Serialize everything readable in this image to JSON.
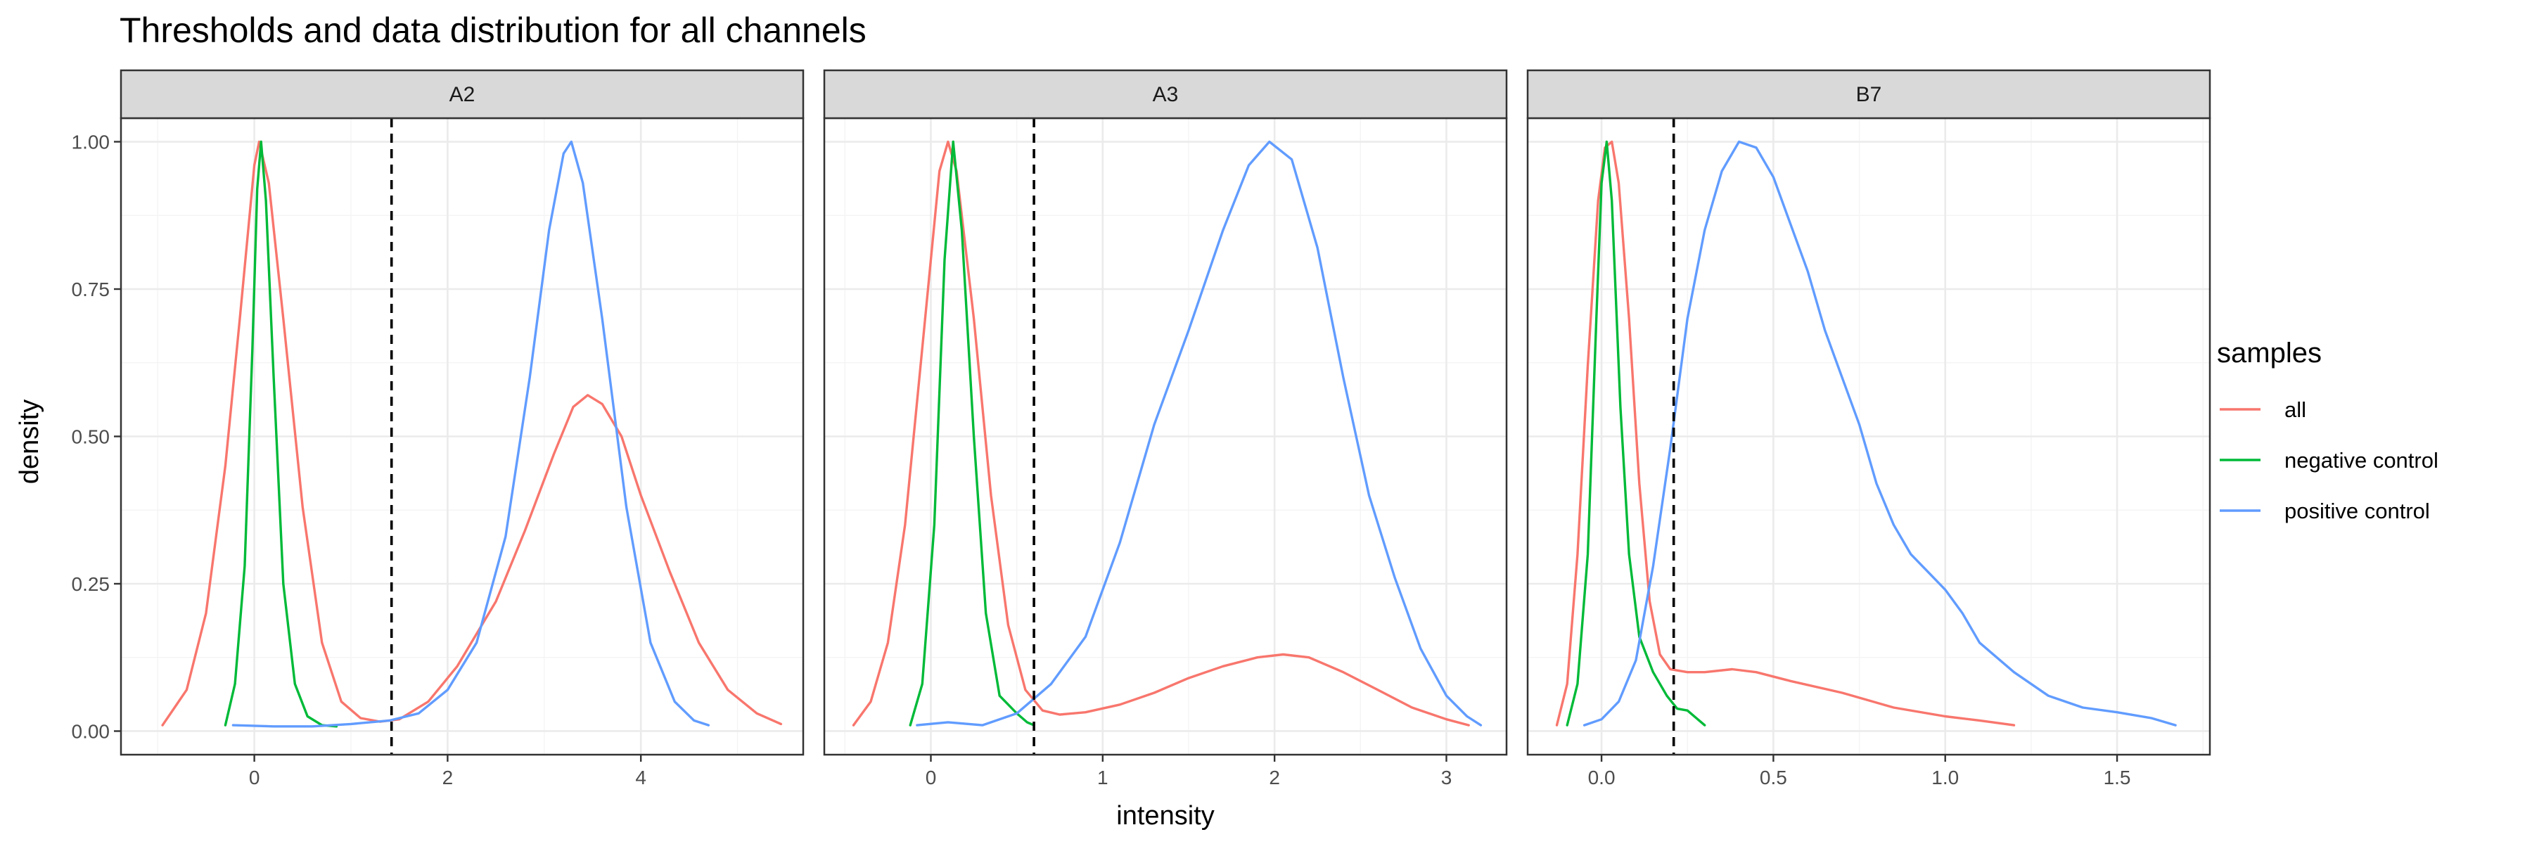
{
  "chart_data": {
    "type": "line",
    "title": "Thresholds and data distribution for all channels",
    "xlabel": "intensity",
    "ylabel": "density",
    "ylim": [
      -0.04,
      1.04
    ],
    "yticks": [
      0.0,
      0.25,
      0.5,
      0.75,
      1.0
    ],
    "ytick_labels": [
      "0.00",
      "0.25",
      "0.50",
      "0.75",
      "1.00"
    ],
    "grid": true,
    "legend": {
      "title": "samples",
      "position": "right",
      "entries": [
        {
          "label": "all",
          "color": "#F8766D"
        },
        {
          "label": "negative control",
          "color": "#00BA38"
        },
        {
          "label": "positive control",
          "color": "#619CFF"
        }
      ]
    },
    "panels": [
      {
        "name": "A2",
        "xlim": [
          -1.38,
          5.68
        ],
        "xticks": [
          0,
          2,
          4
        ],
        "xtick_labels": [
          "0",
          "2",
          "4"
        ],
        "threshold": 1.42,
        "series": [
          {
            "name": "all",
            "points": [
              [
                -0.95,
                0.01
              ],
              [
                -0.7,
                0.07
              ],
              [
                -0.5,
                0.2
              ],
              [
                -0.3,
                0.45
              ],
              [
                -0.15,
                0.7
              ],
              [
                0.0,
                0.96
              ],
              [
                0.05,
                1.0
              ],
              [
                0.15,
                0.93
              ],
              [
                0.3,
                0.7
              ],
              [
                0.5,
                0.38
              ],
              [
                0.7,
                0.15
              ],
              [
                0.9,
                0.05
              ],
              [
                1.1,
                0.022
              ],
              [
                1.3,
                0.016
              ],
              [
                1.5,
                0.02
              ],
              [
                1.8,
                0.05
              ],
              [
                2.1,
                0.11
              ],
              [
                2.5,
                0.22
              ],
              [
                2.8,
                0.34
              ],
              [
                3.1,
                0.47
              ],
              [
                3.3,
                0.55
              ],
              [
                3.45,
                0.57
              ],
              [
                3.6,
                0.555
              ],
              [
                3.8,
                0.5
              ],
              [
                4.0,
                0.4
              ],
              [
                4.3,
                0.27
              ],
              [
                4.6,
                0.15
              ],
              [
                4.9,
                0.07
              ],
              [
                5.2,
                0.03
              ],
              [
                5.45,
                0.012
              ]
            ]
          },
          {
            "name": "negative control",
            "points": [
              [
                -0.3,
                0.01
              ],
              [
                -0.2,
                0.08
              ],
              [
                -0.1,
                0.28
              ],
              [
                -0.02,
                0.65
              ],
              [
                0.03,
                0.92
              ],
              [
                0.07,
                1.0
              ],
              [
                0.12,
                0.9
              ],
              [
                0.2,
                0.6
              ],
              [
                0.3,
                0.25
              ],
              [
                0.42,
                0.08
              ],
              [
                0.55,
                0.025
              ],
              [
                0.7,
                0.01
              ],
              [
                0.85,
                0.008
              ]
            ]
          },
          {
            "name": "positive control",
            "points": [
              [
                -0.22,
                0.01
              ],
              [
                0.2,
                0.008
              ],
              [
                0.6,
                0.008
              ],
              [
                1.0,
                0.012
              ],
              [
                1.4,
                0.018
              ],
              [
                1.7,
                0.03
              ],
              [
                2.0,
                0.07
              ],
              [
                2.3,
                0.15
              ],
              [
                2.6,
                0.33
              ],
              [
                2.85,
                0.6
              ],
              [
                3.05,
                0.85
              ],
              [
                3.2,
                0.98
              ],
              [
                3.28,
                1.0
              ],
              [
                3.4,
                0.93
              ],
              [
                3.6,
                0.7
              ],
              [
                3.85,
                0.38
              ],
              [
                4.1,
                0.15
              ],
              [
                4.35,
                0.05
              ],
              [
                4.55,
                0.018
              ],
              [
                4.7,
                0.01
              ]
            ]
          }
        ]
      },
      {
        "name": "A3",
        "xlim": [
          -0.62,
          3.35
        ],
        "xticks": [
          0,
          1,
          2,
          3
        ],
        "xtick_labels": [
          "0",
          "1",
          "2",
          "3"
        ],
        "threshold": 0.6,
        "series": [
          {
            "name": "all",
            "points": [
              [
                -0.45,
                0.01
              ],
              [
                -0.35,
                0.05
              ],
              [
                -0.25,
                0.15
              ],
              [
                -0.15,
                0.35
              ],
              [
                -0.05,
                0.65
              ],
              [
                0.05,
                0.95
              ],
              [
                0.1,
                1.0
              ],
              [
                0.15,
                0.95
              ],
              [
                0.25,
                0.7
              ],
              [
                0.35,
                0.4
              ],
              [
                0.45,
                0.18
              ],
              [
                0.55,
                0.07
              ],
              [
                0.65,
                0.035
              ],
              [
                0.75,
                0.028
              ],
              [
                0.9,
                0.032
              ],
              [
                1.1,
                0.045
              ],
              [
                1.3,
                0.065
              ],
              [
                1.5,
                0.09
              ],
              [
                1.7,
                0.11
              ],
              [
                1.9,
                0.125
              ],
              [
                2.05,
                0.13
              ],
              [
                2.2,
                0.125
              ],
              [
                2.4,
                0.1
              ],
              [
                2.6,
                0.07
              ],
              [
                2.8,
                0.04
              ],
              [
                3.0,
                0.02
              ],
              [
                3.13,
                0.01
              ]
            ]
          },
          {
            "name": "negative control",
            "points": [
              [
                -0.12,
                0.01
              ],
              [
                -0.05,
                0.08
              ],
              [
                0.02,
                0.35
              ],
              [
                0.08,
                0.8
              ],
              [
                0.13,
                1.0
              ],
              [
                0.18,
                0.85
              ],
              [
                0.25,
                0.5
              ],
              [
                0.32,
                0.2
              ],
              [
                0.4,
                0.06
              ],
              [
                0.5,
                0.03
              ],
              [
                0.56,
                0.015
              ],
              [
                0.6,
                0.01
              ]
            ]
          },
          {
            "name": "positive control",
            "points": [
              [
                -0.08,
                0.01
              ],
              [
                0.1,
                0.015
              ],
              [
                0.3,
                0.01
              ],
              [
                0.5,
                0.03
              ],
              [
                0.7,
                0.08
              ],
              [
                0.9,
                0.16
              ],
              [
                1.1,
                0.32
              ],
              [
                1.3,
                0.52
              ],
              [
                1.5,
                0.68
              ],
              [
                1.7,
                0.85
              ],
              [
                1.85,
                0.96
              ],
              [
                1.97,
                1.0
              ],
              [
                2.1,
                0.97
              ],
              [
                2.25,
                0.82
              ],
              [
                2.4,
                0.6
              ],
              [
                2.55,
                0.4
              ],
              [
                2.7,
                0.26
              ],
              [
                2.85,
                0.14
              ],
              [
                3.0,
                0.06
              ],
              [
                3.12,
                0.025
              ],
              [
                3.2,
                0.01
              ]
            ]
          }
        ]
      },
      {
        "name": "B7",
        "xlim": [
          -0.215,
          1.77
        ],
        "xticks": [
          0,
          0.5,
          1.0,
          1.5
        ],
        "xtick_labels": [
          "0.0",
          "0.5",
          "1.0",
          "1.5"
        ],
        "threshold": 0.21,
        "series": [
          {
            "name": "all",
            "points": [
              [
                -0.13,
                0.01
              ],
              [
                -0.1,
                0.08
              ],
              [
                -0.07,
                0.3
              ],
              [
                -0.04,
                0.62
              ],
              [
                -0.01,
                0.9
              ],
              [
                0.01,
                0.99
              ],
              [
                0.03,
                1.0
              ],
              [
                0.05,
                0.93
              ],
              [
                0.08,
                0.7
              ],
              [
                0.11,
                0.42
              ],
              [
                0.14,
                0.22
              ],
              [
                0.17,
                0.13
              ],
              [
                0.2,
                0.105
              ],
              [
                0.25,
                0.1
              ],
              [
                0.3,
                0.1
              ],
              [
                0.38,
                0.105
              ],
              [
                0.45,
                0.1
              ],
              [
                0.55,
                0.085
              ],
              [
                0.7,
                0.065
              ],
              [
                0.85,
                0.04
              ],
              [
                1.0,
                0.025
              ],
              [
                1.1,
                0.018
              ],
              [
                1.2,
                0.01
              ]
            ]
          },
          {
            "name": "negative control",
            "points": [
              [
                -0.1,
                0.01
              ],
              [
                -0.07,
                0.08
              ],
              [
                -0.04,
                0.3
              ],
              [
                -0.015,
                0.7
              ],
              [
                0.0,
                0.93
              ],
              [
                0.015,
                1.0
              ],
              [
                0.03,
                0.9
              ],
              [
                0.055,
                0.55
              ],
              [
                0.08,
                0.3
              ],
              [
                0.11,
                0.16
              ],
              [
                0.15,
                0.1
              ],
              [
                0.19,
                0.06
              ],
              [
                0.22,
                0.038
              ],
              [
                0.25,
                0.035
              ],
              [
                0.3,
                0.01
              ]
            ]
          },
          {
            "name": "positive control",
            "points": [
              [
                -0.05,
                0.01
              ],
              [
                0.0,
                0.02
              ],
              [
                0.05,
                0.05
              ],
              [
                0.1,
                0.12
              ],
              [
                0.15,
                0.28
              ],
              [
                0.2,
                0.48
              ],
              [
                0.25,
                0.7
              ],
              [
                0.3,
                0.85
              ],
              [
                0.35,
                0.95
              ],
              [
                0.4,
                1.0
              ],
              [
                0.45,
                0.99
              ],
              [
                0.5,
                0.94
              ],
              [
                0.55,
                0.86
              ],
              [
                0.6,
                0.78
              ],
              [
                0.65,
                0.68
              ],
              [
                0.7,
                0.6
              ],
              [
                0.75,
                0.52
              ],
              [
                0.8,
                0.42
              ],
              [
                0.85,
                0.35
              ],
              [
                0.9,
                0.3
              ],
              [
                0.95,
                0.27
              ],
              [
                1.0,
                0.24
              ],
              [
                1.05,
                0.2
              ],
              [
                1.1,
                0.15
              ],
              [
                1.2,
                0.1
              ],
              [
                1.3,
                0.06
              ],
              [
                1.4,
                0.04
              ],
              [
                1.5,
                0.032
              ],
              [
                1.6,
                0.022
              ],
              [
                1.67,
                0.01
              ]
            ]
          }
        ]
      }
    ]
  }
}
